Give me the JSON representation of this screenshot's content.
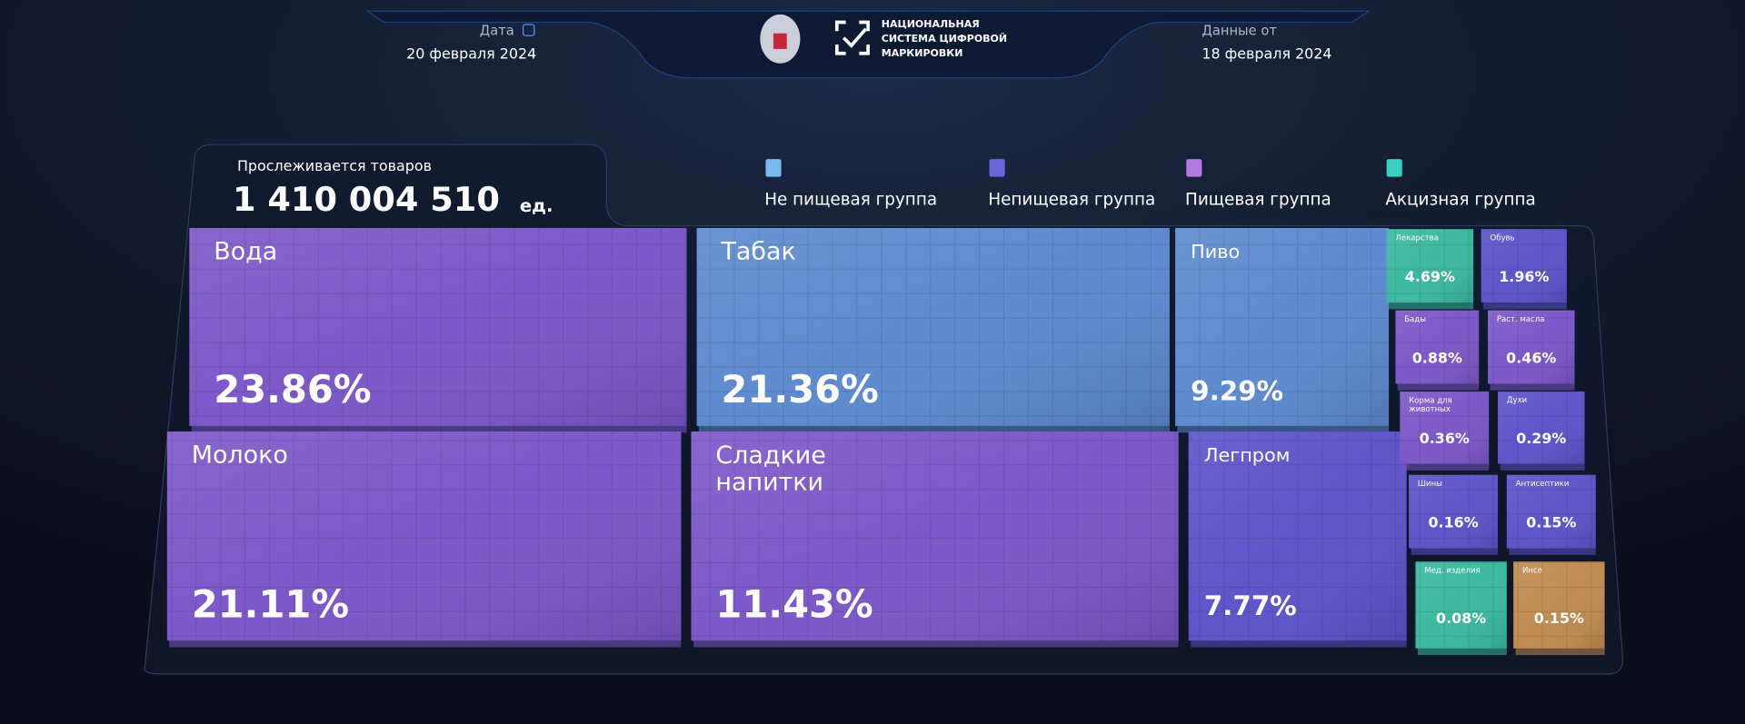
{
  "header": {
    "date_label": "Дата",
    "date": "20 февраля 2024",
    "logo_lines": [
      "НАЦИОНАЛЬНАЯ",
      "СИСТЕМА ЦИФРОВОЙ",
      "МАРКИРОВКИ"
    ],
    "data_from_label": "Данные от",
    "data_from": "18 февраля 2024"
  },
  "summary": {
    "title": "Прослеживается товаров",
    "total": "1 410 004 510",
    "unit": "ед."
  },
  "chart_data": {
    "type": "treemap",
    "legend": [
      {
        "name": "Не пищевая группа",
        "color": "#7ab8f0"
      },
      {
        "name": "Непищевая группа",
        "color": "#6a66d8"
      },
      {
        "name": "Пищевая группа",
        "color": "#b07ae0"
      },
      {
        "name": "Акцизная группа",
        "color": "#3ad0c0"
      }
    ],
    "tiles": [
      {
        "label": "Вода",
        "value": 23.86,
        "value_label": "23.86%",
        "color": "#7b55c8"
      },
      {
        "label": "Табак",
        "value": 21.36,
        "value_label": "21.36%",
        "color": "#5b88cf"
      },
      {
        "label": "Пиво",
        "value": 9.29,
        "value_label": "9.29%",
        "color": "#5b88cf"
      },
      {
        "label": "Молоко",
        "value": 21.11,
        "value_label": "21.11%",
        "color": "#7b55c8"
      },
      {
        "label": "Сладкие напитки",
        "value": 11.43,
        "value_label": "11.43%",
        "color": "#7b55c8"
      },
      {
        "label": "Легпром",
        "value": 7.77,
        "value_label": "7.77%",
        "color": "#5a52c8"
      },
      {
        "label": "Лекарства",
        "value": 4.69,
        "value_label": "4.69%",
        "color": "#38b89e"
      },
      {
        "label": "Обувь",
        "value": 1.96,
        "value_label": "1.96%",
        "color": "#5a52c8"
      },
      {
        "label": "Бады",
        "value": 0.88,
        "value_label": "0.88%",
        "color": "#7b55c8"
      },
      {
        "label": "Раст. масла",
        "value": 0.46,
        "value_label": "0.46%",
        "color": "#7b55c8"
      },
      {
        "label": "Корма для животных",
        "value": 0.36,
        "value_label": "0.36%",
        "color": "#7b55c8"
      },
      {
        "label": "Духи",
        "value": 0.29,
        "value_label": "0.29%",
        "color": "#5a52c8"
      },
      {
        "label": "Шины",
        "value": 0.16,
        "value_label": "0.16%",
        "color": "#5a52c8"
      },
      {
        "label": "Антисептики",
        "value": 0.15,
        "value_label": "0.15%",
        "color": "#5a52c8"
      },
      {
        "label": "Мед. изделия",
        "value": 0.08,
        "value_label": "0.08%",
        "color": "#38b89e"
      },
      {
        "label": "Инсе",
        "value": 0.15,
        "value_label": "0.15%",
        "color": "#c08a4e"
      }
    ]
  }
}
